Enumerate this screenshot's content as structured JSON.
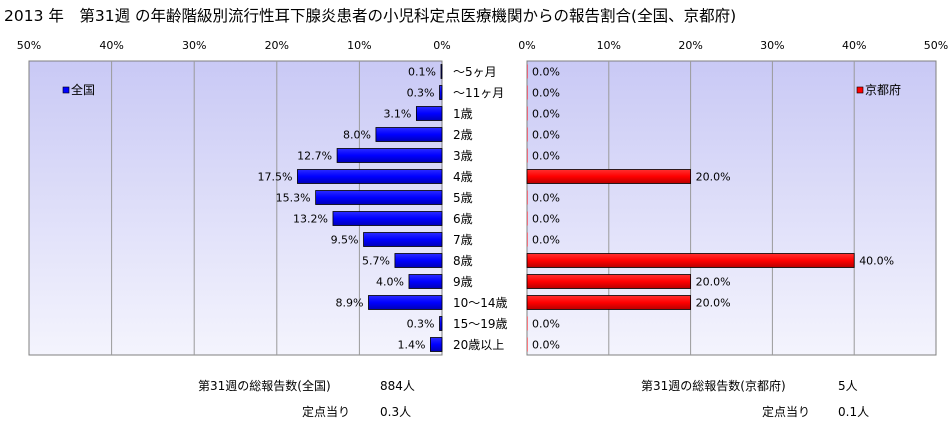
{
  "title": "2013 年　第31週 の年齢階級別流行性耳下腺炎患者の小児科定点医療機関からの報告割合(全国、京都府)",
  "chart_data": [
    {
      "type": "bar",
      "orientation": "horizontal",
      "direction": "right-to-left",
      "series": [
        {
          "name": "全国",
          "values": [
            0.1,
            0.3,
            3.1,
            8.0,
            12.7,
            17.5,
            15.3,
            13.2,
            9.5,
            5.7,
            4.0,
            8.9,
            0.3,
            1.4
          ]
        }
      ],
      "value_labels": [
        "0.1%",
        "0.3%",
        "3.1%",
        "8.0%",
        "12.7%",
        "17.5%",
        "15.3%",
        "13.2%",
        "9.5%",
        "5.7%",
        "4.0%",
        "8.9%",
        "0.3%",
        "1.4%"
      ],
      "xlim": [
        0,
        50
      ],
      "ticks": [
        "50%",
        "40%",
        "30%",
        "20%",
        "10%",
        "0%"
      ],
      "grid": true,
      "legend": "top-left",
      "color": "#0000ff"
    },
    {
      "type": "bar",
      "orientation": "horizontal",
      "direction": "left-to-right",
      "series": [
        {
          "name": "京都府",
          "values": [
            0,
            0,
            0,
            0,
            0,
            20,
            0,
            0,
            0,
            40,
            20,
            20,
            0,
            0
          ]
        }
      ],
      "value_labels": [
        "0.0%",
        "0.0%",
        "0.0%",
        "0.0%",
        "0.0%",
        "20.0%",
        "0.0%",
        "0.0%",
        "0.0%",
        "40.0%",
        "20.0%",
        "20.0%",
        "0.0%",
        "0.0%"
      ],
      "xlim": [
        0,
        50
      ],
      "ticks": [
        "0%",
        "10%",
        "20%",
        "30%",
        "40%",
        "50%"
      ],
      "grid": true,
      "legend": "top-right",
      "color": "#ff0000"
    }
  ],
  "categories": [
    "～5ヶ月",
    "～11ヶ月",
    "1歳",
    "2歳",
    "3歳",
    "4歳",
    "5歳",
    "6歳",
    "7歳",
    "8歳",
    "9歳",
    "10～14歳",
    "15～19歳",
    "20歳以上"
  ],
  "footer": {
    "national_total_label": "第31週の総報告数(全国)",
    "national_total_value": "884人",
    "national_per_site_label": "定点当り",
    "national_per_site_value": "0.3人",
    "kyoto_total_label": "第31週の総報告数(京都府)",
    "kyoto_total_value": "5人",
    "kyoto_per_site_label": "定点当り",
    "kyoto_per_site_value": "0.1人"
  }
}
